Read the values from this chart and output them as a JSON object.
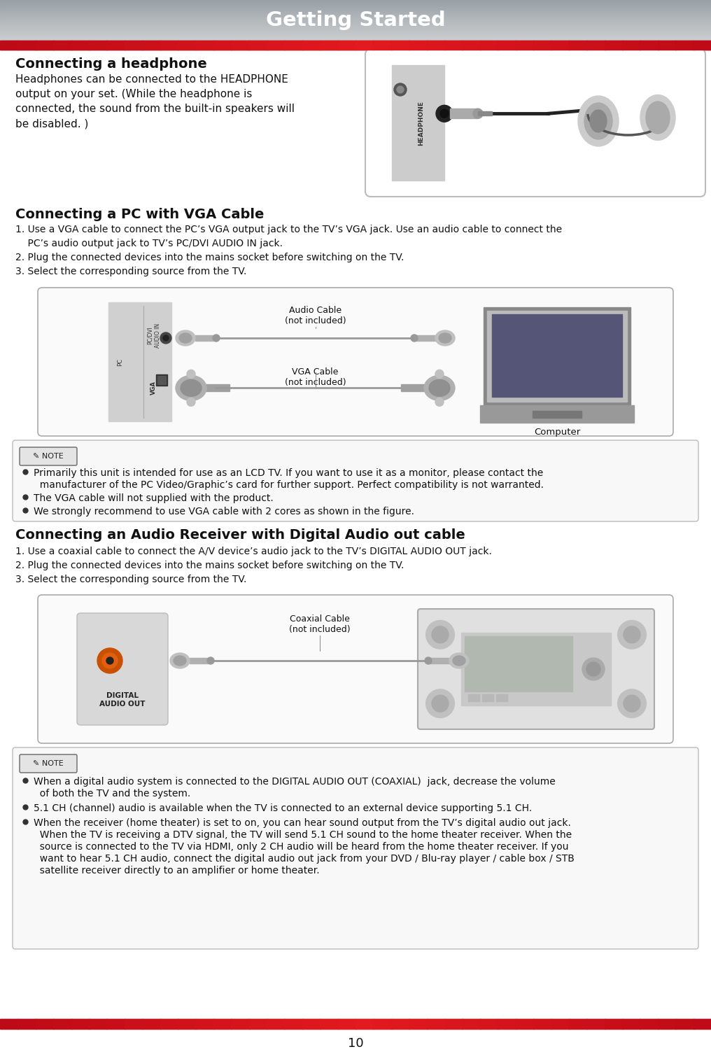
{
  "title": "Getting Started",
  "title_color": "#ffffff",
  "red_bar_color": "#b01020",
  "red_bar_bright": "#dd2233",
  "page_bg": "#ffffff",
  "heading1": "Connecting a headphone",
  "para1_lines": [
    "Headphones can be connected to the HEADPHONE",
    "output on your set. (While the headphone is",
    "connected, the sound from the built-in speakers will",
    "be disabled. )"
  ],
  "heading2": "Connecting a PC with VGA Cable",
  "para2_lines": [
    "1. Use a VGA cable to connect the PC’s VGA output jack to the TV’s VGA jack. Use an audio cable to connect the",
    "    PC’s audio output jack to TV’s PC/DVI AUDIO IN jack.",
    "2. Plug the connected devices into the mains socket before switching on the TV.",
    "3. Select the corresponding source from the TV."
  ],
  "note1_lines": [
    "Primarily this unit is intended for use as an LCD TV. If you want to use it as a monitor, please contact the",
    "  manufacturer of the PC Video/Graphic’s card for further support. Perfect compatibility is not warranted.",
    "The VGA cable will not supplied with the product.",
    "We strongly recommend to use VGA cable with 2 cores as shown in the figure."
  ],
  "heading3": "Connecting an Audio Receiver with Digital Audio out cable",
  "para3_lines": [
    "1. Use a coaxial cable to connect the A/V device’s audio jack to the TV’s DIGITAL AUDIO OUT jack.",
    "2. Plug the connected devices into the mains socket before switching on the TV.",
    "3. Select the corresponding source from the TV."
  ],
  "note2_lines": [
    "When a digital audio system is connected to the DIGITAL AUDIO OUT (COAXIAL)  jack, decrease the volume",
    "  of both the TV and the system.",
    "5.1 CH (channel) audio is available when the TV is connected to an external device supporting 5.1 CH.",
    "When the receiver (home theater) is set to on, you can hear sound output from the TV’s digital audio out jack.",
    "  When the TV is receiving a DTV signal, the TV will send 5.1 CH sound to the home theater receiver. When the",
    "  source is connected to the TV via HDMI, only 2 CH audio will be heard from the home theater receiver. If you",
    "  want to hear 5.1 CH audio, connect the digital audio out jack from your DVD / Blu-ray player / cable box / STB",
    "  satellite receiver directly to an amplifier or home theater."
  ],
  "page_num": "10",
  "label_audio_cable": "Audio Cable\n(not included)",
  "label_vga_cable": "VGA Cable\n(not included)",
  "label_computer": "Computer",
  "label_coaxial": "Coaxial Cable\n(not included)",
  "label_headphone": "HEADPHONE",
  "label_pc_dvi": "PC/DVI\nAUDIO IN",
  "label_vga": "VGA",
  "label_pc": "PC",
  "label_digital_audio": "DIGITAL\nAUDIO OUT",
  "text_color": "#111111",
  "gray_panel": "#cccccc",
  "light_gray": "#d8d8d8",
  "box_border": "#aaaaaa",
  "note_box_fill": "#f8f8f8"
}
